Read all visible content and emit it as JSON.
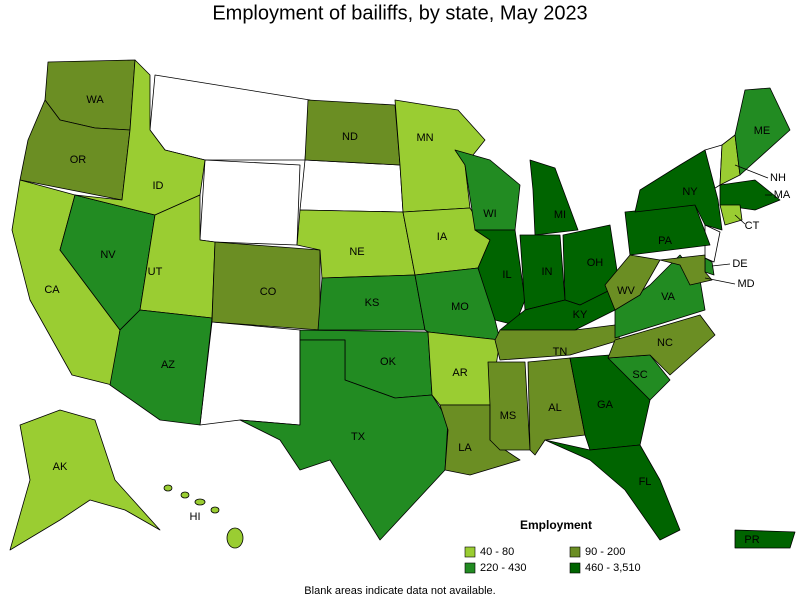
{
  "title": "Employment of bailiffs, by state, May 2023",
  "legend": {
    "title": "Employment",
    "classes": [
      {
        "label": "40 - 80",
        "color": "#9acd32"
      },
      {
        "label": "90 - 200",
        "color": "#6b8e23"
      },
      {
        "label": "220 - 430",
        "color": "#228b22"
      },
      {
        "label": "460 - 3,510",
        "color": "#006400"
      }
    ]
  },
  "states": [
    {
      "label": "WA",
      "class": 1
    },
    {
      "label": "OR",
      "class": 1
    },
    {
      "label": "CA",
      "class": 0
    },
    {
      "label": "NV",
      "class": 2
    },
    {
      "label": "ID",
      "class": 0
    },
    {
      "label": "UT",
      "class": 0
    },
    {
      "label": "AZ",
      "class": 2
    },
    {
      "label": "CO",
      "class": 1
    },
    {
      "label": "ND",
      "class": 1
    },
    {
      "label": "NE",
      "class": 0
    },
    {
      "label": "KS",
      "class": 2
    },
    {
      "label": "OK",
      "class": 2
    },
    {
      "label": "TX",
      "class": 2
    },
    {
      "label": "MN",
      "class": 0
    },
    {
      "label": "IA",
      "class": 0
    },
    {
      "label": "MO",
      "class": 2
    },
    {
      "label": "AR",
      "class": 0
    },
    {
      "label": "LA",
      "class": 1
    },
    {
      "label": "WI",
      "class": 2
    },
    {
      "label": "IL",
      "class": 3
    },
    {
      "label": "MI",
      "class": 3
    },
    {
      "label": "IN",
      "class": 3
    },
    {
      "label": "OH",
      "class": 3
    },
    {
      "label": "KY",
      "class": 3
    },
    {
      "label": "TN",
      "class": 1
    },
    {
      "label": "MS",
      "class": 1
    },
    {
      "label": "AL",
      "class": 1
    },
    {
      "label": "GA",
      "class": 3
    },
    {
      "label": "FL",
      "class": 3
    },
    {
      "label": "SC",
      "class": 2
    },
    {
      "label": "NC",
      "class": 1
    },
    {
      "label": "VA",
      "class": 2
    },
    {
      "label": "WV",
      "class": 1
    },
    {
      "label": "PA",
      "class": 3
    },
    {
      "label": "NY",
      "class": 3
    },
    {
      "label": "NH",
      "class": 0
    },
    {
      "label": "ME",
      "class": 2
    },
    {
      "label": "MA",
      "class": 3
    },
    {
      "label": "CT",
      "class": 0
    },
    {
      "label": "DE",
      "class": 2
    },
    {
      "label": "MD",
      "class": 1
    },
    {
      "label": "AK",
      "class": 0
    },
    {
      "label": "HI",
      "class": 0
    },
    {
      "label": "PR",
      "class": 3
    }
  ],
  "note": "Blank areas indicate data not available."
}
